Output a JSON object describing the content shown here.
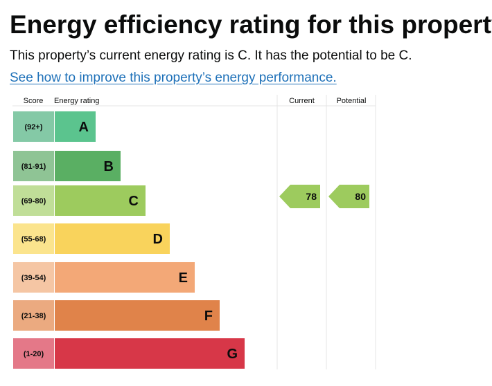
{
  "page": {
    "title": "Energy efficiency rating for this property",
    "summary": "This property’s current energy rating is C. It has the potential to be C.",
    "link_text": "See how to improve this property’s energy performance."
  },
  "chart_data": {
    "type": "bar",
    "headers": {
      "score": "Score",
      "rating": "Energy rating",
      "current": "Current",
      "potential": "Potential"
    },
    "bands": [
      {
        "letter": "A",
        "range": "(92+)",
        "color": "#5bc48e",
        "score_color": "#84c9a6"
      },
      {
        "letter": "B",
        "range": "(81-91)",
        "color": "#5aaf63",
        "score_color": "#8fc495"
      },
      {
        "letter": "C",
        "range": "(69-80)",
        "color": "#9dcb5e",
        "score_color": "#c0de98"
      },
      {
        "letter": "D",
        "range": "(55-68)",
        "color": "#f9d35c",
        "score_color": "#fbe48d"
      },
      {
        "letter": "E",
        "range": "(39-54)",
        "color": "#f3a877",
        "score_color": "#f5c6a4"
      },
      {
        "letter": "F",
        "range": "(21-38)",
        "color": "#e0834a",
        "score_color": "#ebaa80"
      },
      {
        "letter": "G",
        "range": "(1-20)",
        "color": "#d73748",
        "score_color": "#e47888"
      }
    ],
    "current": {
      "value": "78",
      "band": "C",
      "color": "#9dcb5e"
    },
    "potential": {
      "value": "80",
      "band": "C",
      "color": "#9dcb5e"
    }
  }
}
